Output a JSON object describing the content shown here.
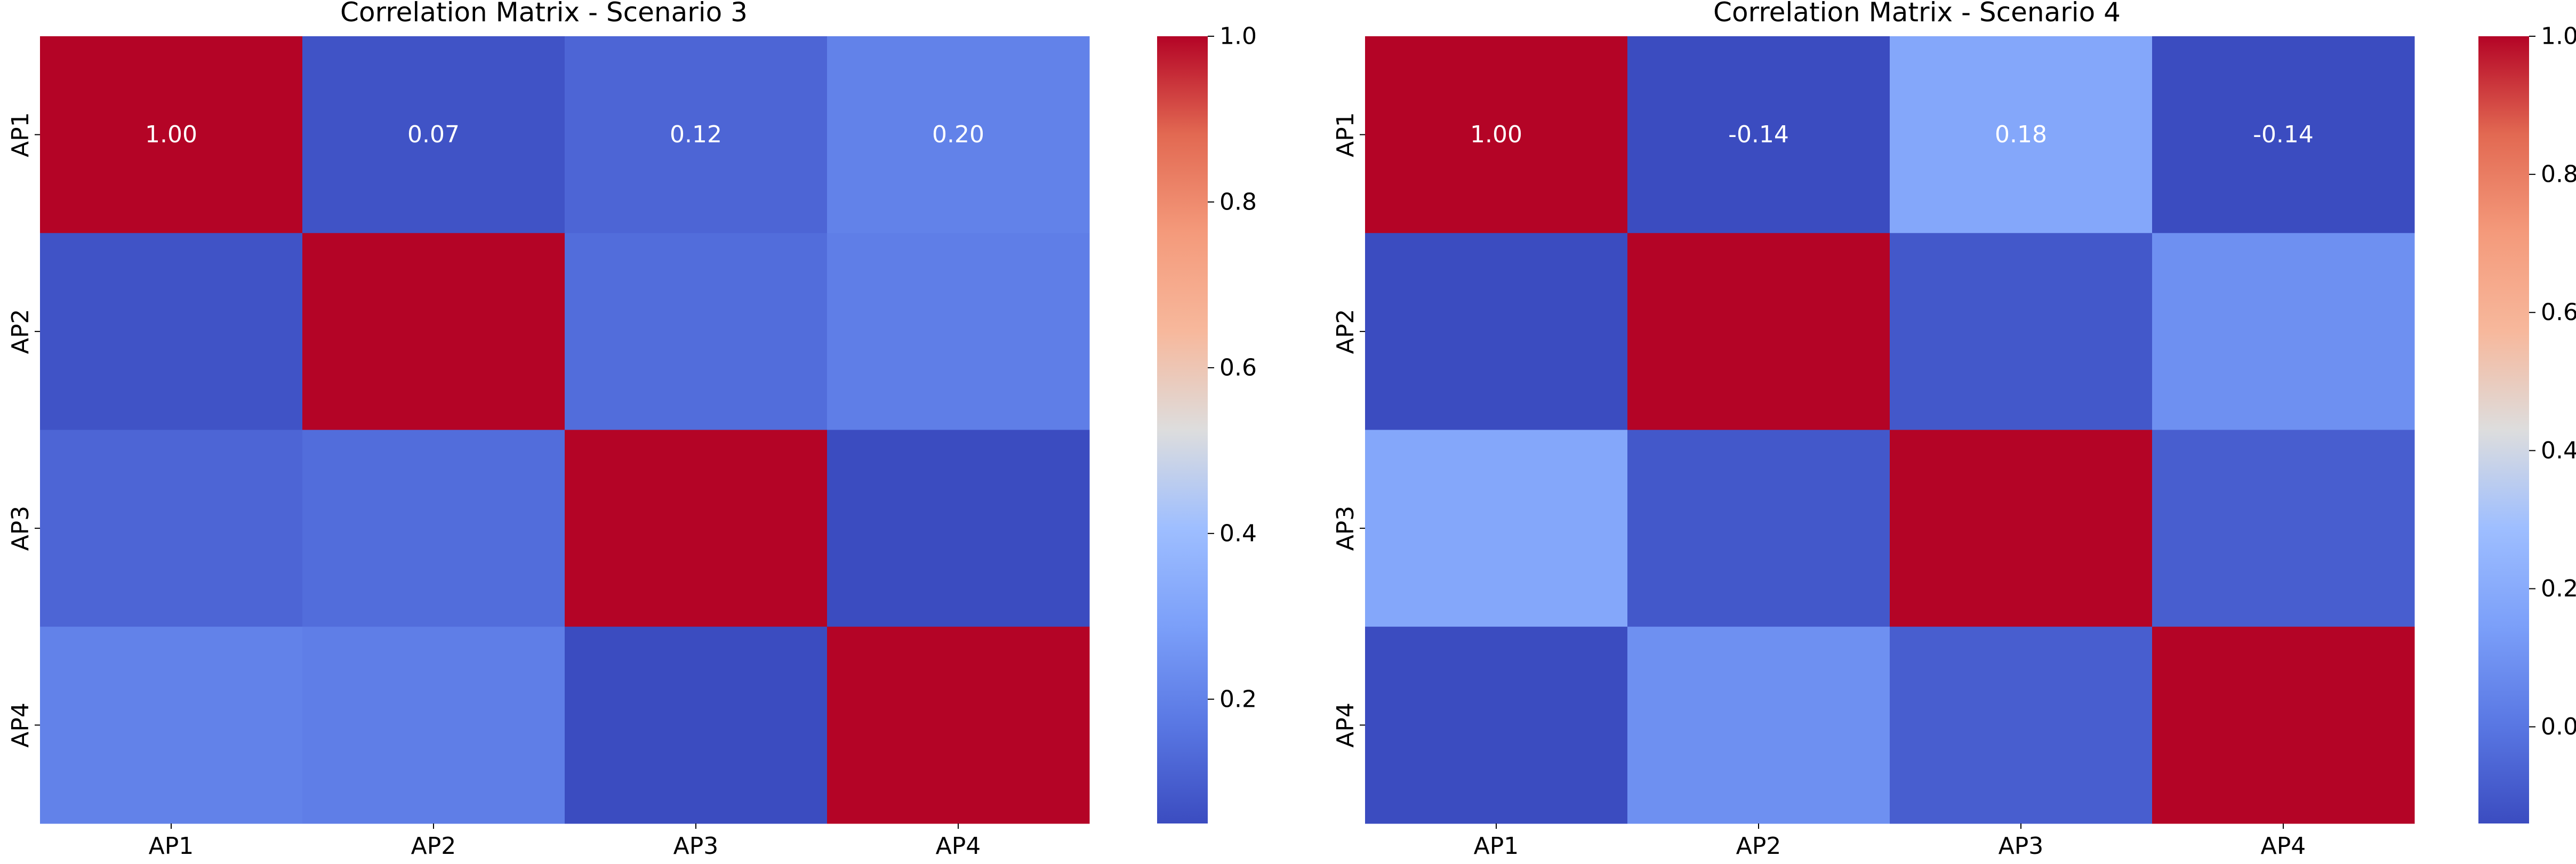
{
  "chart_data": [
    {
      "type": "heatmap",
      "title": "Correlation Matrix - Scenario 3",
      "rows": [
        "AP1",
        "AP2",
        "AP3",
        "AP4"
      ],
      "columns": [
        "AP1",
        "AP2",
        "AP3",
        "AP4"
      ],
      "values": [
        [
          1.0,
          0.07,
          0.12,
          0.2
        ],
        [
          0.07,
          1.0,
          0.14,
          0.19
        ],
        [
          0.12,
          0.14,
          1.0,
          0.05
        ],
        [
          0.2,
          0.19,
          0.05,
          1.0
        ]
      ],
      "annotations": [
        [
          "1.00",
          "0.07",
          "0.12",
          "0.20"
        ],
        [
          "",
          "",
          "",
          ""
        ],
        [
          "",
          "",
          "",
          ""
        ],
        [
          "",
          "",
          "",
          ""
        ]
      ],
      "colormap": "coolwarm",
      "vmin": 0.05,
      "vmax": 1.0,
      "colorbar_ticks": [
        "0.2",
        "0.4",
        "0.6",
        "0.8",
        "1.0"
      ]
    },
    {
      "type": "heatmap",
      "title": "Correlation Matrix - Scenario 4",
      "rows": [
        "AP1",
        "AP2",
        "AP3",
        "AP4"
      ],
      "columns": [
        "AP1",
        "AP2",
        "AP3",
        "AP4"
      ],
      "values": [
        [
          1.0,
          -0.14,
          0.18,
          -0.14
        ],
        [
          -0.14,
          1.0,
          -0.1,
          0.09
        ],
        [
          0.18,
          -0.1,
          1.0,
          -0.08
        ],
        [
          -0.14,
          0.09,
          -0.08,
          1.0
        ]
      ],
      "annotations": [
        [
          "1.00",
          "-0.14",
          "0.18",
          "-0.14"
        ],
        [
          "",
          "",
          "",
          ""
        ],
        [
          "",
          "",
          "",
          ""
        ],
        [
          "",
          "",
          "",
          ""
        ]
      ],
      "colormap": "coolwarm",
      "vmin": -0.14,
      "vmax": 1.0,
      "colorbar_ticks": [
        "0.0",
        "0.2",
        "0.4",
        "0.6",
        "0.8",
        "1.0"
      ]
    }
  ]
}
